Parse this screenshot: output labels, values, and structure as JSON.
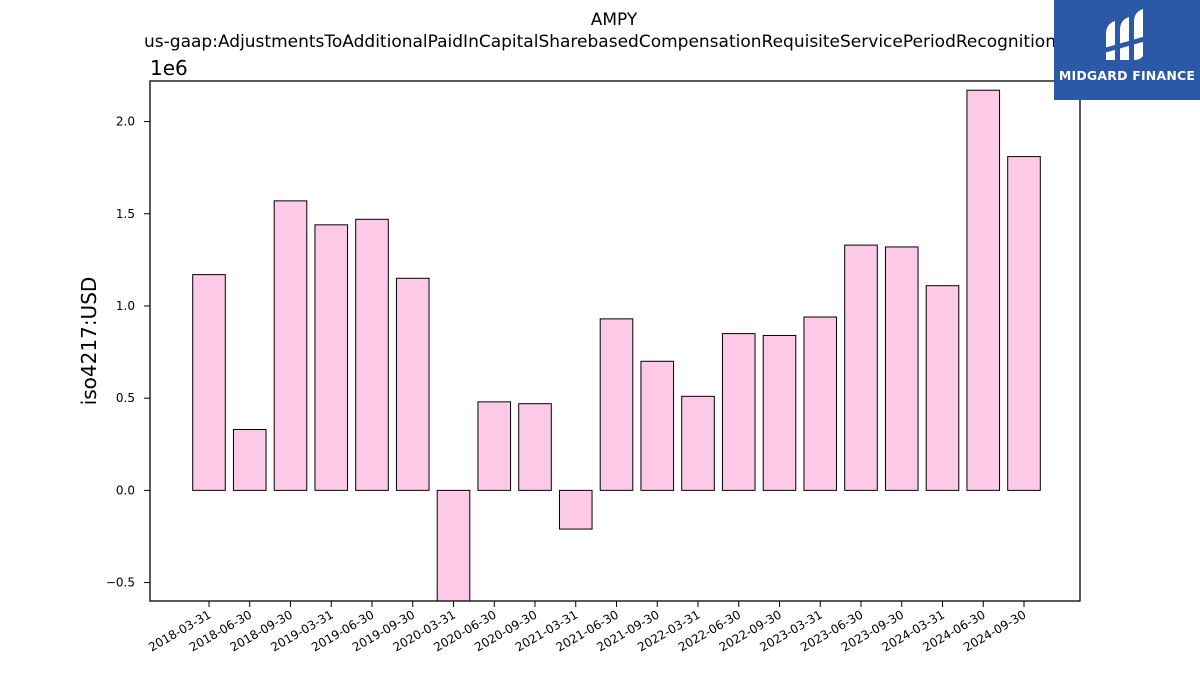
{
  "chart_data": {
    "type": "bar",
    "title": "AMPY",
    "subtitle": "us-gaap:AdjustmentsToAdditionalPaidInCapitalSharebasedCompensationRequisiteServicePeriodRecognition",
    "ylabel": "iso4217:USD",
    "xlabel": "",
    "offset_label": "1e6",
    "ylim": [
      -0.6,
      2.22
    ],
    "yticks": [
      -0.5,
      0.0,
      0.5,
      1.0,
      1.5,
      2.0
    ],
    "ytick_labels": [
      "−0.5",
      "0.0",
      "0.5",
      "1.0",
      "1.5",
      "2.0"
    ],
    "categories": [
      "2018-03-31",
      "2018-06-30",
      "2018-09-30",
      "2019-03-31",
      "2019-06-30",
      "2019-09-30",
      "2020-03-31",
      "2020-06-30",
      "2020-09-30",
      "2021-03-31",
      "2021-06-30",
      "2021-09-30",
      "2022-03-31",
      "2022-06-30",
      "2022-09-30",
      "2023-03-31",
      "2023-06-30",
      "2023-09-30",
      "2024-03-31",
      "2024-06-30",
      "2024-09-30"
    ],
    "values": [
      1.17,
      0.33,
      1.57,
      1.44,
      1.47,
      1.15,
      -0.62,
      0.48,
      0.47,
      -0.21,
      0.93,
      0.7,
      0.51,
      0.85,
      0.84,
      0.94,
      1.33,
      1.32,
      1.11,
      2.17,
      1.81
    ],
    "bar_color": "#fccae6",
    "edge_color": "#000000",
    "grid": false,
    "legend": "none"
  },
  "logo": {
    "text": "MIDGARD FINANCE",
    "bg_color": "#2b59a8"
  }
}
